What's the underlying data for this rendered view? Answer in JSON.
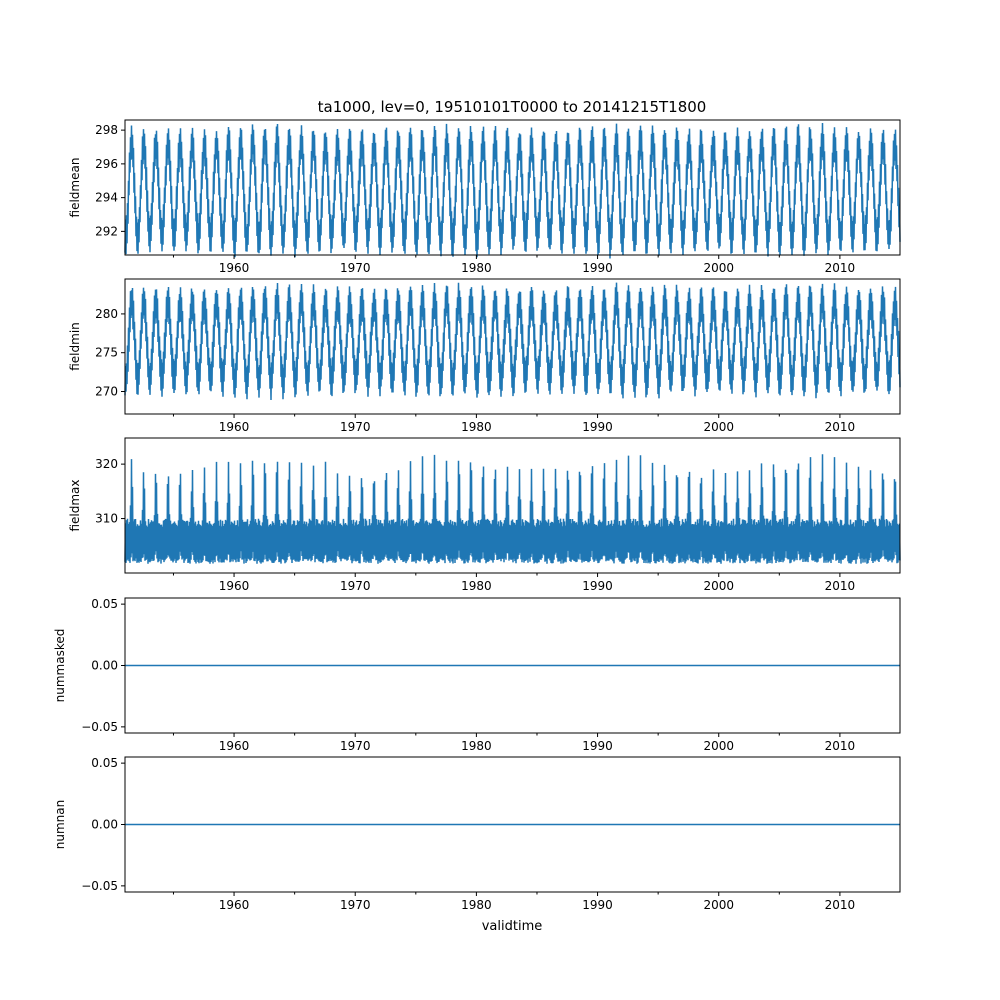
{
  "chart_data": {
    "type": "line",
    "title": "ta1000, lev=0, 19510101T0000 to 20141215T1800",
    "xlabel": "validtime",
    "x_range": [
      1951.0,
      2014.96
    ],
    "x_ticks": [
      "1960",
      "1970",
      "1980",
      "1990",
      "2000",
      "2010"
    ],
    "x_tick_values": [
      1960,
      1970,
      1980,
      1990,
      2000,
      2010
    ],
    "x_minor_tick_values": [
      1955,
      1965,
      1975,
      1985,
      1995,
      2005
    ],
    "grid": false,
    "line_color": "#1f77b4",
    "panels": [
      {
        "ylabel": "fieldmean",
        "ylim": [
          290.6,
          298.6
        ],
        "y_ticks": [
          "292",
          "294",
          "296",
          "298"
        ],
        "y_tick_values": [
          292,
          294,
          296,
          298
        ],
        "series": {
          "name": "fieldmean",
          "annual_low": 291.6,
          "annual_high": 297.2,
          "noise_band": 1.4
        }
      },
      {
        "ylabel": "fieldmin",
        "ylim": [
          267.1,
          284.5
        ],
        "y_ticks": [
          "270",
          "275",
          "280"
        ],
        "y_tick_values": [
          270,
          275,
          280
        ],
        "series": {
          "name": "fieldmin",
          "annual_low": 271.5,
          "annual_high": 281.5,
          "noise_band": 3.0
        }
      },
      {
        "ylabel": "fieldmax",
        "ylim": [
          300.0,
          324.8
        ],
        "y_ticks": [
          "310",
          "320"
        ],
        "y_tick_values": [
          310,
          320
        ],
        "series": {
          "name": "fieldmax",
          "base_low": 302.5,
          "base_high": 309.5,
          "annual_peak": 320.5
        }
      },
      {
        "ylabel": "nummasked",
        "ylim": [
          -0.055,
          0.055
        ],
        "y_ticks": [
          "−0.05",
          "0.00",
          "0.05"
        ],
        "y_tick_values": [
          -0.05,
          0,
          0.05
        ],
        "series": {
          "name": "nummasked",
          "constant": 0
        }
      },
      {
        "ylabel": "numnan",
        "ylim": [
          -0.055,
          0.055
        ],
        "y_ticks": [
          "−0.05",
          "0.00",
          "0.05"
        ],
        "y_tick_values": [
          -0.05,
          0,
          0.05
        ],
        "series": {
          "name": "numnan",
          "constant": 0
        }
      }
    ]
  }
}
